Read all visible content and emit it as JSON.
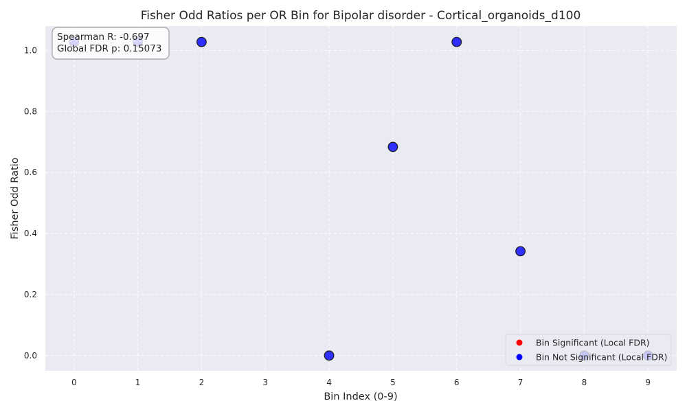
{
  "chart_data": {
    "type": "scatter",
    "title": "Fisher Odd Ratios per OR Bin for Bipolar disorder - Cortical_organoids_d100",
    "xlabel": "Bin Index (0-9)",
    "ylabel": "Fisher Odd Ratio",
    "xlim": [
      -0.45,
      9.45
    ],
    "ylim": [
      -0.05,
      1.08
    ],
    "xticks": [
      0,
      1,
      2,
      3,
      4,
      5,
      6,
      7,
      8,
      9
    ],
    "xtick_labels": [
      "0",
      "1",
      "2",
      "3",
      "4",
      "5",
      "6",
      "7",
      "8",
      "9"
    ],
    "yticks": [
      0.0,
      0.2,
      0.4,
      0.6,
      0.8,
      1.0
    ],
    "ytick_labels": [
      "0.0",
      "0.2",
      "0.4",
      "0.6",
      "0.8",
      "1.0"
    ],
    "grid": true,
    "series": [
      {
        "name": "Bin Significant (Local FDR)",
        "color": "#ff0000",
        "x": [],
        "y": []
      },
      {
        "name": "Bin Not Significant (Local FDR)",
        "color": "#0000ff",
        "x": [
          0,
          1,
          2,
          4,
          5,
          6,
          7,
          8,
          9
        ],
        "y": [
          1.028,
          1.028,
          1.028,
          0.0,
          0.684,
          1.028,
          0.342,
          0.0,
          0.0
        ]
      }
    ],
    "annotation": {
      "lines": [
        "Spearman R: -0.697",
        "Global FDR p: 0.15073"
      ],
      "placement": "top-left"
    },
    "legend_placement": "bottom-right",
    "colors": {
      "plot_background": "#eaeaf2",
      "figure_background": "#ffffff"
    }
  }
}
